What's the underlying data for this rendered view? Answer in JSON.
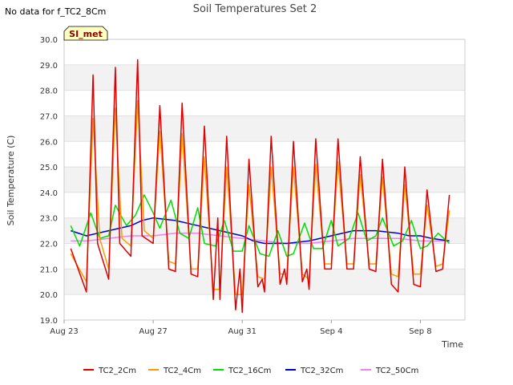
{
  "header": {
    "no_data_note": "No data for f_TC2_8Cm"
  },
  "chart_data": {
    "type": "line",
    "title": "Soil Temperatures Set 2",
    "xlabel": "Time",
    "ylabel": "Soil Temperature (C)",
    "ylim": [
      19.0,
      30.0
    ],
    "xlim_days_label": [
      "Aug 23",
      "Sep 10.4"
    ],
    "y_ticks": [
      "19.0",
      "20.0",
      "21.0",
      "22.0",
      "23.0",
      "24.0",
      "25.0",
      "26.0",
      "27.0",
      "28.0",
      "29.0",
      "30.0"
    ],
    "x_ticks": [
      "Aug 23",
      "Aug 27",
      "Aug 31",
      "Sep 4",
      "Sep 8"
    ],
    "grid": true,
    "legend_position": "bottom",
    "badge": {
      "text": "SI_met",
      "fill": "#ffffc0",
      "text_color": "#8b0000"
    },
    "series": [
      {
        "name": "TC2_2Cm",
        "color": "#dd0000",
        "x": [
          0.3,
          1.0,
          1.3,
          1.5,
          2.0,
          2.3,
          2.5,
          3.0,
          3.3,
          3.5,
          4.0,
          4.3,
          4.7,
          5.0,
          5.3,
          5.7,
          6.0,
          6.3,
          6.7,
          6.9,
          7.0,
          7.3,
          7.7,
          7.9,
          8.0,
          8.3,
          8.7,
          8.9,
          9.0,
          9.3,
          9.7,
          9.9,
          10.0,
          10.3,
          10.7,
          10.9,
          11.0,
          11.3,
          11.7,
          12.0,
          12.3,
          12.7,
          13.0,
          13.3,
          13.7,
          14.0,
          14.3,
          14.7,
          15.0,
          15.3,
          15.7,
          16.0,
          16.3,
          16.7,
          17.0,
          17.3
        ],
        "y": [
          21.8,
          20.1,
          28.6,
          22.0,
          20.6,
          28.9,
          22.0,
          21.5,
          29.2,
          22.3,
          22.0,
          27.4,
          21.0,
          20.9,
          27.5,
          20.8,
          20.7,
          26.6,
          19.8,
          23.0,
          19.8,
          26.2,
          19.4,
          21.0,
          19.3,
          25.3,
          20.3,
          20.6,
          20.1,
          26.2,
          20.4,
          21.0,
          20.4,
          26.0,
          20.5,
          21.0,
          20.2,
          26.1,
          21.0,
          21.0,
          26.1,
          21.0,
          21.0,
          25.4,
          21.0,
          20.9,
          25.3,
          20.4,
          20.1,
          25.0,
          20.4,
          20.3,
          24.1,
          20.9,
          21.0,
          23.9
        ]
      },
      {
        "name": "TC2_4Cm",
        "color": "#ff9900",
        "x": [
          0.3,
          1.0,
          1.3,
          1.6,
          2.0,
          2.3,
          2.6,
          3.0,
          3.3,
          3.6,
          4.0,
          4.3,
          4.7,
          5.0,
          5.3,
          5.7,
          6.0,
          6.3,
          6.7,
          7.0,
          7.3,
          7.7,
          8.0,
          8.3,
          8.7,
          9.0,
          9.3,
          9.7,
          10.0,
          10.3,
          10.7,
          11.0,
          11.3,
          11.7,
          12.0,
          12.3,
          12.7,
          13.0,
          13.3,
          13.7,
          14.0,
          14.3,
          14.7,
          15.0,
          15.3,
          15.7,
          16.0,
          16.3,
          16.7,
          17.0,
          17.3
        ],
        "y": [
          21.6,
          20.5,
          26.9,
          22.2,
          21.0,
          27.3,
          22.2,
          21.9,
          27.6,
          22.5,
          22.2,
          26.4,
          21.3,
          21.2,
          26.3,
          21.0,
          21.0,
          25.4,
          20.2,
          20.2,
          25.0,
          20.0,
          20.0,
          24.3,
          20.7,
          20.6,
          25.0,
          20.8,
          20.8,
          25.0,
          20.8,
          20.6,
          25.1,
          21.2,
          21.2,
          25.2,
          21.2,
          21.2,
          24.7,
          21.2,
          21.2,
          24.6,
          20.8,
          20.7,
          24.3,
          20.8,
          20.8,
          23.5,
          21.1,
          21.2,
          23.3
        ]
      },
      {
        "name": "TC2_16Cm",
        "color": "#00dd00",
        "x": [
          0.3,
          0.7,
          1.2,
          1.6,
          2.0,
          2.3,
          2.8,
          3.2,
          3.6,
          4.0,
          4.3,
          4.8,
          5.2,
          5.6,
          6.0,
          6.3,
          6.8,
          7.2,
          7.6,
          8.0,
          8.3,
          8.8,
          9.2,
          9.6,
          10.0,
          10.3,
          10.8,
          11.2,
          11.6,
          12.0,
          12.3,
          12.8,
          13.2,
          13.6,
          14.0,
          14.3,
          14.8,
          15.2,
          15.6,
          16.0,
          16.3,
          16.8,
          17.3
        ],
        "y": [
          22.7,
          21.9,
          23.2,
          22.2,
          22.3,
          23.5,
          22.7,
          23.1,
          23.9,
          23.2,
          22.6,
          23.7,
          22.4,
          22.2,
          23.4,
          22.0,
          21.9,
          22.9,
          21.7,
          21.7,
          22.7,
          21.6,
          21.5,
          22.5,
          21.5,
          21.6,
          22.8,
          21.8,
          21.8,
          22.9,
          21.9,
          22.2,
          23.2,
          22.1,
          22.3,
          23.0,
          21.9,
          22.1,
          22.9,
          21.8,
          21.9,
          22.4,
          22.0
        ]
      },
      {
        "name": "TC2_32Cm",
        "color": "#0000cc",
        "x": [
          0.3,
          1.0,
          2.0,
          2.5,
          3.0,
          3.5,
          4.0,
          5.0,
          6.0,
          7.0,
          8.0,
          8.5,
          9.0,
          10.0,
          11.0,
          12.0,
          13.0,
          14.0,
          15.0,
          15.5,
          16.0,
          16.5,
          17.3
        ],
        "y": [
          22.5,
          22.3,
          22.5,
          22.6,
          22.7,
          22.9,
          23.0,
          22.9,
          22.7,
          22.5,
          22.3,
          22.1,
          22.0,
          22.0,
          22.1,
          22.3,
          22.5,
          22.5,
          22.4,
          22.3,
          22.3,
          22.2,
          22.1
        ]
      },
      {
        "name": "TC2_50Cm",
        "color": "#ee82ee",
        "x": [
          0.3,
          1.0,
          2.0,
          3.0,
          4.0,
          5.0,
          6.0,
          7.0,
          8.0,
          9.0,
          10.0,
          11.0,
          12.0,
          13.0,
          14.0,
          15.0,
          16.0,
          17.3
        ],
        "y": [
          22.1,
          22.1,
          22.2,
          22.3,
          22.3,
          22.4,
          22.4,
          22.3,
          22.2,
          22.1,
          22.0,
          22.0,
          22.1,
          22.2,
          22.2,
          22.2,
          22.1,
          22.1
        ]
      }
    ]
  }
}
